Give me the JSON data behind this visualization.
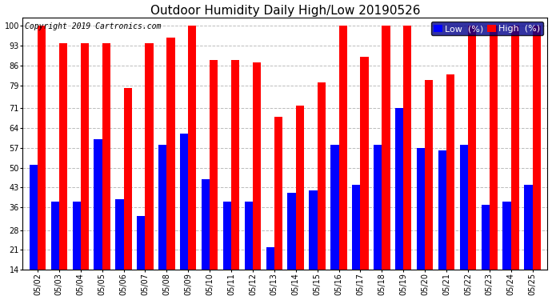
{
  "title": "Outdoor Humidity Daily High/Low 20190526",
  "copyright": "Copyright 2019 Cartronics.com",
  "dates": [
    "05/02",
    "05/03",
    "05/04",
    "05/05",
    "05/06",
    "05/07",
    "05/08",
    "05/09",
    "05/10",
    "05/11",
    "05/12",
    "05/13",
    "05/14",
    "05/15",
    "05/16",
    "05/17",
    "05/18",
    "05/19",
    "05/20",
    "05/21",
    "05/22",
    "05/23",
    "05/24",
    "05/25"
  ],
  "high": [
    100,
    94,
    94,
    94,
    78,
    94,
    96,
    100,
    88,
    88,
    87,
    68,
    72,
    80,
    100,
    89,
    100,
    100,
    81,
    83,
    100,
    100,
    100,
    100
  ],
  "low": [
    51,
    38,
    38,
    60,
    39,
    33,
    58,
    62,
    46,
    38,
    38,
    22,
    41,
    42,
    58,
    44,
    58,
    71,
    57,
    56,
    58,
    37,
    38,
    44
  ],
  "bar_width": 0.38,
  "high_color": "#ff0000",
  "low_color": "#0000ff",
  "background_color": "#ffffff",
  "grid_color": "#bbbbbb",
  "ylim_min": 14,
  "ylim_max": 103,
  "yticks": [
    14,
    21,
    28,
    36,
    43,
    50,
    57,
    64,
    71,
    79,
    86,
    93,
    100
  ],
  "title_fontsize": 11,
  "legend_fontsize": 8,
  "tick_fontsize": 7,
  "copyright_fontsize": 7
}
